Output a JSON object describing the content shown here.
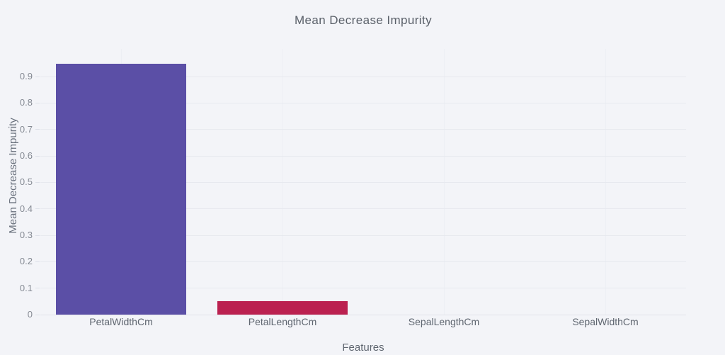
{
  "chart_data": {
    "type": "bar",
    "title": "Mean Decrease Impurity",
    "xlabel": "Features",
    "ylabel": "Mean Decrease Impurity",
    "categories": [
      "PetalWidthCm",
      "PetalLengthCm",
      "SepalLengthCm",
      "SepalWidthCm"
    ],
    "values": [
      0.95,
      0.05,
      0,
      0
    ],
    "bar_colors": [
      "#5b4fa6",
      "#bb2150",
      "#bb2150",
      "#bb2150"
    ],
    "yticks": [
      "0",
      "0.1",
      "0.2",
      "0.3",
      "0.4",
      "0.5",
      "0.6",
      "0.7",
      "0.8",
      "0.9"
    ],
    "ylim": [
      0,
      1.005
    ],
    "grid": true,
    "legend": false,
    "colors": {
      "background": "#f3f4f8",
      "gridline": "#e7e9ef",
      "zero_line": "#e2e4ea",
      "bar_purple": "#5b4fa6",
      "bar_crimson": "#bb2150",
      "title_text": "#5a6069",
      "tick_text": "#858a93",
      "label_text": "#5f6670"
    }
  }
}
